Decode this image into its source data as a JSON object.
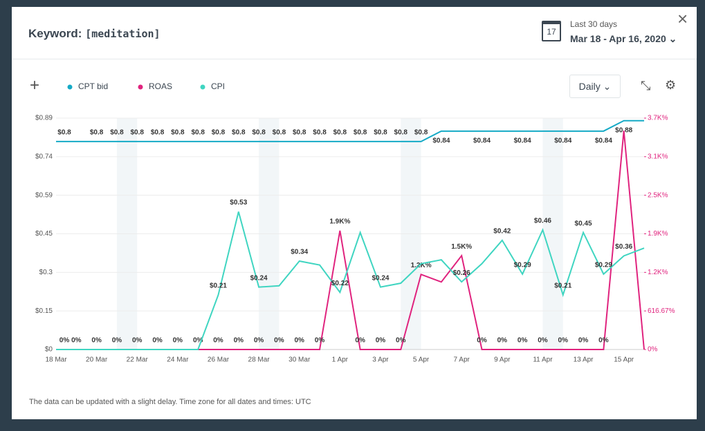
{
  "header": {
    "title": "Keyword:",
    "keyword": "[meditation]"
  },
  "date": {
    "day": "17",
    "preset": "Last 30 days",
    "range": "Mar 18 - Apr 16, 2020"
  },
  "controls": {
    "interval": "Daily"
  },
  "footer": "The data can be updated with a slight delay. Time zone for all dates and times: UTC",
  "chart_data": {
    "type": "line",
    "categories": [
      "18 Mar",
      null,
      "20 Mar",
      null,
      "22 Mar",
      null,
      "24 Mar",
      null,
      "26 Mar",
      null,
      "28 Mar",
      null,
      "30 Mar",
      null,
      "1 Apr",
      null,
      "3 Apr",
      null,
      "5 Apr",
      null,
      "7 Apr",
      null,
      "9 Apr",
      null,
      "11 Apr",
      null,
      "13 Apr",
      null,
      "15 Apr",
      null
    ],
    "ylim": [
      0,
      0.89
    ],
    "yticks": [
      {
        "value": 0,
        "label": "$0"
      },
      {
        "value": 0.1483,
        "label": "$0.15"
      },
      {
        "value": 0.2967,
        "label": "$0.3"
      },
      {
        "value": 0.445,
        "label": "$0.45"
      },
      {
        "value": 0.5933,
        "label": "$0.59"
      },
      {
        "value": 0.7417,
        "label": "$0.74"
      },
      {
        "value": 0.89,
        "label": "$0.89"
      }
    ],
    "y2lim": [
      0,
      3700
    ],
    "y2ticks": [
      {
        "value": 0,
        "label": "0%"
      },
      {
        "value": 616.67,
        "label": "616.67%"
      },
      {
        "value": 1233.33,
        "label": "1.2K%"
      },
      {
        "value": 1850,
        "label": "1.9K%"
      },
      {
        "value": 2466.67,
        "label": "2.5K%"
      },
      {
        "value": 3083.33,
        "label": "3.1K%"
      },
      {
        "value": 3700,
        "label": "3.7K%"
      }
    ],
    "grid": true,
    "series": [
      {
        "name": "CPT bid",
        "color": "#15aac6",
        "axis": "y",
        "values": [
          0.8,
          0.8,
          0.8,
          0.8,
          0.8,
          0.8,
          0.8,
          0.8,
          0.8,
          0.8,
          0.8,
          0.8,
          0.8,
          0.8,
          0.8,
          0.8,
          0.8,
          0.8,
          0.8,
          0.84,
          0.84,
          0.84,
          0.84,
          0.84,
          0.84,
          0.84,
          0.84,
          0.84,
          0.88,
          0.88
        ],
        "value_labels": [
          "$0.8",
          null,
          "$0.8",
          "$0.8",
          "$0.8",
          "$0.8",
          "$0.8",
          "$0.8",
          "$0.8",
          "$0.8",
          "$0.8",
          "$0.8",
          "$0.8",
          "$0.8",
          "$0.8",
          "$0.8",
          "$0.8",
          "$0.8",
          "$0.8",
          "$0.84",
          null,
          "$0.84",
          null,
          "$0.84",
          null,
          "$0.84",
          null,
          "$0.84",
          "$0.88",
          null
        ]
      },
      {
        "name": "ROAS",
        "color": "#e0237e",
        "axis": "y2",
        "values": [
          0,
          0,
          0,
          0,
          0,
          0,
          0,
          0,
          0,
          0,
          0,
          0,
          0,
          0,
          1900,
          0,
          0,
          0,
          1200,
          1080,
          1500,
          0,
          0,
          0,
          0,
          0,
          0,
          0,
          3500,
          0
        ],
        "value_labels": [
          "0%",
          "0%",
          "0%",
          "0%",
          "0%",
          "0%",
          "0%",
          "0%",
          "0%",
          "0%",
          "0%",
          "0%",
          "0%",
          "0%",
          "1.9K%",
          "0%",
          "0%",
          "0%",
          "1.2K%",
          null,
          "1.5K%",
          "0%",
          "0%",
          "0%",
          "0%",
          "0%",
          "0%",
          "0%",
          null,
          null
        ]
      },
      {
        "name": "CPI",
        "color": "#3fd5c1",
        "axis": "y",
        "values": [
          0,
          0,
          0,
          0,
          0,
          0,
          0,
          0,
          0.21,
          0.53,
          0.24,
          0.245,
          0.34,
          0.325,
          0.22,
          0.45,
          0.24,
          0.255,
          0.33,
          0.345,
          0.26,
          0.33,
          0.42,
          0.29,
          0.46,
          0.21,
          0.45,
          0.29,
          0.36,
          0.39
        ],
        "value_labels": [
          null,
          null,
          null,
          null,
          null,
          null,
          null,
          null,
          "$0.21",
          "$0.53",
          "$0.24",
          null,
          "$0.34",
          null,
          "$0.22",
          null,
          "$0.24",
          null,
          null,
          null,
          "$0.26",
          null,
          "$0.42",
          "$0.29",
          "$0.46",
          "$0.21",
          "$0.45",
          "$0.29",
          "$0.36",
          null
        ]
      }
    ]
  }
}
